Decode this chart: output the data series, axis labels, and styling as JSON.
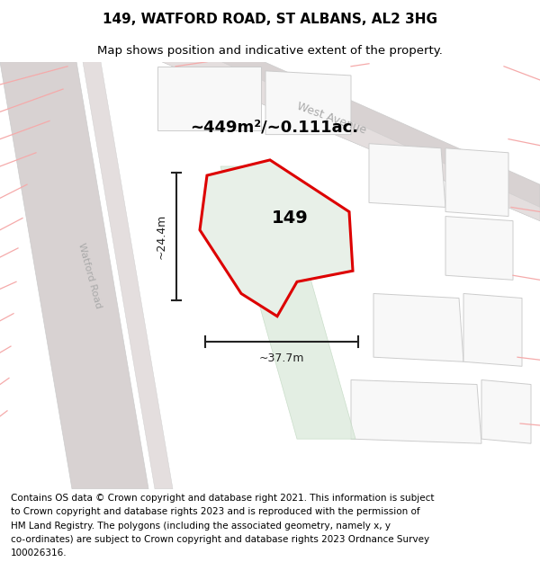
{
  "title_line1": "149, WATFORD ROAD, ST ALBANS, AL2 3HG",
  "title_line2": "Map shows position and indicative extent of the property.",
  "footer_lines": [
    "Contains OS data © Crown copyright and database right 2021. This information is subject",
    "to Crown copyright and database rights 2023 and is reproduced with the permission of",
    "HM Land Registry. The polygons (including the associated geometry, namely x, y",
    "co-ordinates) are subject to Crown copyright and database rights 2023 Ordnance Survey",
    "100026316."
  ],
  "area_label": "~449m²/~0.111ac.",
  "property_number": "149",
  "width_label": "~37.7m",
  "height_label": "~24.4m",
  "map_bg": "#eeebeb",
  "white_parcel": "#f8f8f8",
  "road_fill": "#d8d2d2",
  "road_inner": "#e4dede",
  "green_fill": "#dceadc",
  "pink_line": "#f5aaaa",
  "property_fill": "#e8f0e8",
  "property_outline": "#dd0000",
  "street_label_color": "#aaaaaa",
  "dim_color": "#222222",
  "title_fontsize": 11,
  "subtitle_fontsize": 9.5,
  "footer_fontsize": 7.5,
  "area_fontsize": 13,
  "number_fontsize": 14,
  "dim_fontsize": 9,
  "street_fontsize": 9,
  "watford_fontsize": 8
}
